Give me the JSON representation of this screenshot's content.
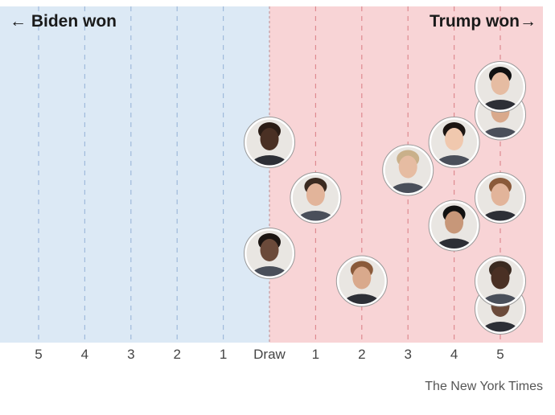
{
  "chart_data": {
    "type": "scatter",
    "title": "",
    "left_label": "← Biden won",
    "right_label": "Trump won→",
    "x_tick_labels": [
      "5",
      "4",
      "3",
      "2",
      "1",
      "Draw",
      "1",
      "2",
      "3",
      "4",
      "5"
    ],
    "x_values_meaning": "negative = Biden won by N, 0 = Draw, positive = Trump won by N",
    "xlim": [
      -5,
      5
    ],
    "points": [
      {
        "x": 0,
        "y": 2
      },
      {
        "x": 0,
        "y": 6
      },
      {
        "x": 1,
        "y": 4
      },
      {
        "x": 2,
        "y": 1
      },
      {
        "x": 3,
        "y": 5
      },
      {
        "x": 4,
        "y": 3
      },
      {
        "x": 4,
        "y": 6
      },
      {
        "x": 5,
        "y": 0
      },
      {
        "x": 5,
        "y": 1
      },
      {
        "x": 5,
        "y": 4
      },
      {
        "x": 5,
        "y": 7
      },
      {
        "x": 5,
        "y": 8
      }
    ],
    "colors": {
      "biden_bg": "#dce9f5",
      "biden_grid": "#9fbadb",
      "trump_bg": "#f8d4d6",
      "trump_grid": "#de8a90",
      "draw_line": "#c9a3a8"
    }
  },
  "credit": "The New York Times"
}
